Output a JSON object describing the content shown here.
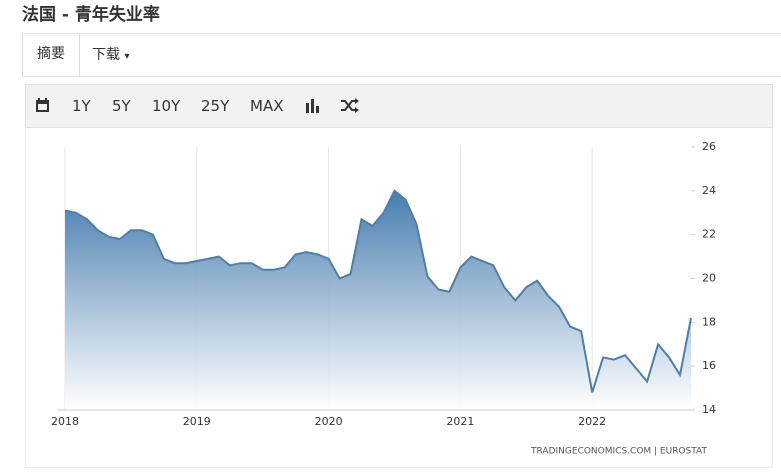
{
  "page": {
    "title": "法国 - 青年失业率",
    "tabs": [
      "摘要",
      "下载"
    ],
    "toolbar": [
      "1Y",
      "5Y",
      "10Y",
      "25Y",
      "MAX"
    ]
  },
  "chart_data": {
    "type": "area",
    "categories": [
      "2018",
      null,
      null,
      null,
      null,
      null,
      null,
      null,
      null,
      null,
      null,
      null,
      "2019",
      null,
      null,
      null,
      null,
      null,
      null,
      null,
      null,
      null,
      null,
      null,
      "2020",
      null,
      null,
      null,
      null,
      null,
      null,
      null,
      null,
      null,
      null,
      null,
      "2021",
      null,
      null,
      null,
      null,
      null,
      null,
      null,
      null,
      null,
      null,
      null,
      "2022",
      null,
      null,
      null,
      null,
      null,
      null,
      null,
      null,
      null
    ],
    "values": [
      23.1,
      23.0,
      22.7,
      22.2,
      21.9,
      21.8,
      22.2,
      22.2,
      22.0,
      20.9,
      20.7,
      20.7,
      20.8,
      20.9,
      21.0,
      20.6,
      20.7,
      20.7,
      20.4,
      20.4,
      20.5,
      21.1,
      21.2,
      21.1,
      20.9,
      20.0,
      20.2,
      22.7,
      22.4,
      23.0,
      24.0,
      23.6,
      22.5,
      20.1,
      19.5,
      19.4,
      20.5,
      21.0,
      20.8,
      20.6,
      19.6,
      19.0,
      19.6,
      19.9,
      19.2,
      18.7,
      17.8,
      17.6,
      14.8,
      16.4,
      16.3,
      16.5,
      15.9,
      15.3,
      17.0,
      16.4,
      15.6,
      18.2
    ],
    "color": "#4f7ea8",
    "ylim": [
      14,
      26
    ],
    "yticks": [
      14,
      16,
      18,
      20,
      22,
      24,
      26
    ],
    "source": "TRADINGECONOMICS.COM  |  EUROSTAT"
  }
}
